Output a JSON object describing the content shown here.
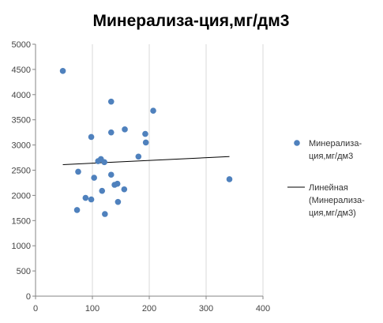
{
  "chart_data": {
    "type": "scatter",
    "title": "Минерализа-ция,мг/дм3",
    "xlabel": "",
    "ylabel": "",
    "xlim": [
      0,
      400
    ],
    "ylim": [
      0,
      5000
    ],
    "xticks": [
      "0",
      "100",
      "200",
      "300",
      "400"
    ],
    "yticks": [
      "0",
      "500",
      "1000",
      "1500",
      "2000",
      "2500",
      "3000",
      "3500",
      "4000",
      "4500",
      "5000"
    ],
    "grid": "vertical",
    "legend_position": "right",
    "series": [
      {
        "name": "Минерализа-ция,мг/дм3",
        "color": "#4f81bd",
        "marker": "circle",
        "points": [
          {
            "x": 48,
            "y": 4470
          },
          {
            "x": 73,
            "y": 1710
          },
          {
            "x": 75,
            "y": 2470
          },
          {
            "x": 88,
            "y": 1950
          },
          {
            "x": 98,
            "y": 3160
          },
          {
            "x": 98,
            "y": 1920
          },
          {
            "x": 103,
            "y": 2350
          },
          {
            "x": 110,
            "y": 2680
          },
          {
            "x": 115,
            "y": 2720
          },
          {
            "x": 117,
            "y": 2090
          },
          {
            "x": 121,
            "y": 2660
          },
          {
            "x": 122,
            "y": 1630
          },
          {
            "x": 133,
            "y": 3860
          },
          {
            "x": 133,
            "y": 3250
          },
          {
            "x": 133,
            "y": 2410
          },
          {
            "x": 139,
            "y": 2210
          },
          {
            "x": 144,
            "y": 2230
          },
          {
            "x": 145,
            "y": 1870
          },
          {
            "x": 156,
            "y": 2120
          },
          {
            "x": 157,
            "y": 3310
          },
          {
            "x": 181,
            "y": 2770
          },
          {
            "x": 193,
            "y": 3220
          },
          {
            "x": 194,
            "y": 3050
          },
          {
            "x": 207,
            "y": 3680
          },
          {
            "x": 341,
            "y": 2320
          }
        ]
      }
    ],
    "trendline": {
      "name": "Линейная (Минерализа-ция,мг/дм3)",
      "legend_lines": [
        "Линейная",
        "(Минерализа-",
        "ция,мг/дм3)"
      ],
      "type": "linear",
      "color": "#000000",
      "x": [
        48,
        341
      ],
      "y": [
        2610,
        2770
      ]
    },
    "legend_series_lines": [
      "Минерализа-",
      "ция,мг/дм3"
    ]
  }
}
